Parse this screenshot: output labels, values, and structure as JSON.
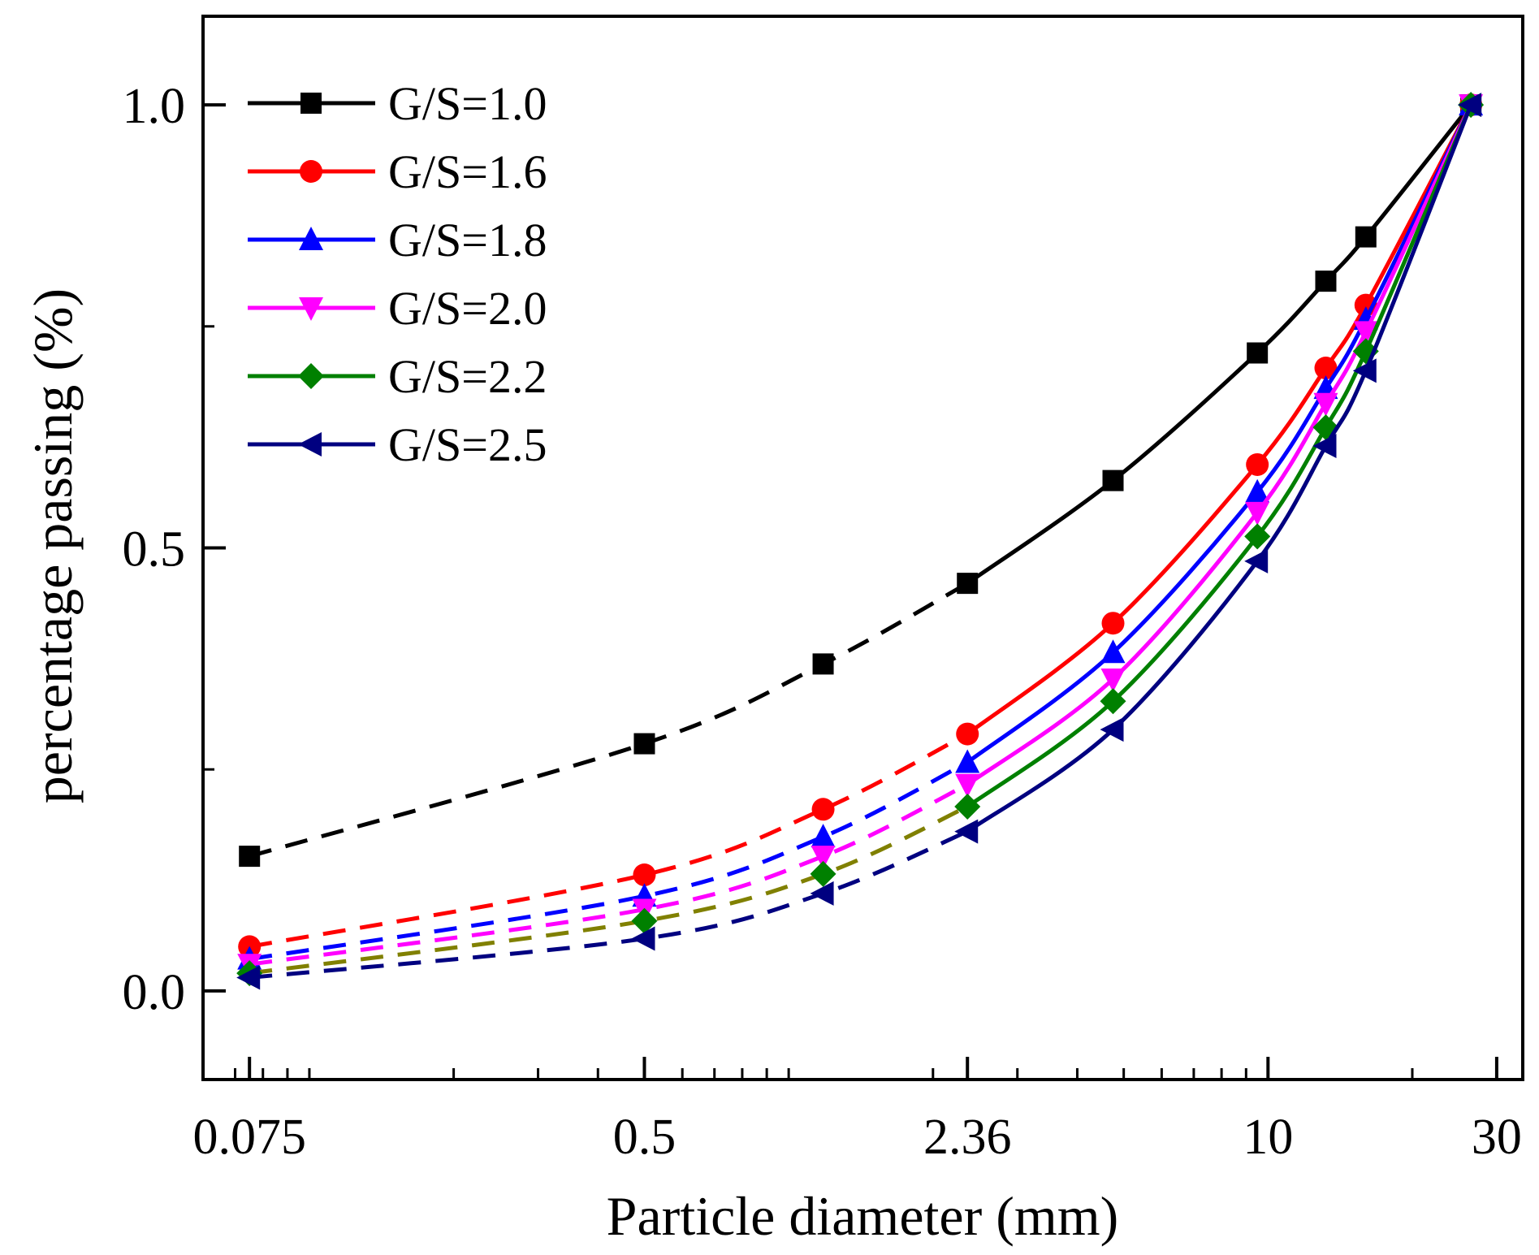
{
  "chart_data": {
    "type": "line",
    "xscale": "log",
    "xlabel": "Particle diameter (mm)",
    "ylabel": "percentage passing (%)",
    "xlim": [
      0.06,
      34
    ],
    "ylim": [
      -0.1,
      1.1
    ],
    "x": [
      0.075,
      0.5,
      1.18,
      2.36,
      4.75,
      9.5,
      13.2,
      16,
      26.5
    ],
    "xticks": [
      {
        "value": 0.075,
        "label": "0.075"
      },
      {
        "value": 0.5,
        "label": "0.5"
      },
      {
        "value": 2.36,
        "label": "2.36"
      },
      {
        "value": 10,
        "label": "10"
      },
      {
        "value": 30,
        "label": "30"
      }
    ],
    "yticks": [
      {
        "value": 0.0,
        "label": "0.0"
      },
      {
        "value": 0.5,
        "label": "0.5"
      },
      {
        "value": 1.0,
        "label": "1.0"
      }
    ],
    "legend_position": "top-left",
    "series": [
      {
        "name": "G/S=1.0",
        "color": "#000000",
        "dash_color": "#000000",
        "marker": "square",
        "values": [
          0.152,
          0.279,
          0.369,
          0.46,
          0.576,
          0.72,
          0.801,
          0.851,
          1.0
        ]
      },
      {
        "name": "G/S=1.6",
        "color": "#ff0000",
        "dash_color": "#ff0000",
        "marker": "circle",
        "values": [
          0.05,
          0.131,
          0.205,
          0.29,
          0.415,
          0.594,
          0.703,
          0.774,
          1.0
        ]
      },
      {
        "name": "G/S=1.8",
        "color": "#0000ff",
        "dash_color": "#0000ff",
        "marker": "triangle-up",
        "values": [
          0.036,
          0.107,
          0.174,
          0.258,
          0.382,
          0.563,
          0.68,
          0.758,
          1.0
        ]
      },
      {
        "name": "G/S=2.0",
        "color": "#ff00ff",
        "dash_color": "#ff00ff",
        "marker": "triangle-down",
        "values": [
          0.03,
          0.092,
          0.152,
          0.233,
          0.352,
          0.54,
          0.663,
          0.744,
          1.0
        ]
      },
      {
        "name": "G/S=2.2",
        "color": "#008000",
        "dash_color": "#808000",
        "marker": "diamond",
        "values": [
          0.02,
          0.079,
          0.132,
          0.208,
          0.327,
          0.513,
          0.636,
          0.722,
          1.0
        ]
      },
      {
        "name": "G/S=2.5",
        "color": "#000080",
        "dash_color": "#000080",
        "marker": "triangle-left",
        "values": [
          0.015,
          0.059,
          0.11,
          0.18,
          0.295,
          0.485,
          0.615,
          0.7,
          1.0
        ]
      }
    ],
    "note": "segments from 0.075 to 2.36 mm are dashed; from 2.36 mm upward solid"
  }
}
